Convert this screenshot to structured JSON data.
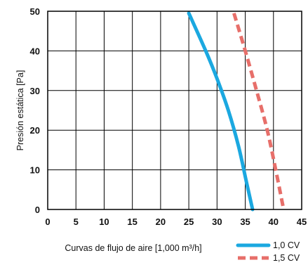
{
  "chart_data": {
    "type": "line",
    "xlabel": "Curvas de flujo de aire [1,000 m³/h]",
    "ylabel": "Presión estática  [Pa]",
    "xlim": [
      0,
      45
    ],
    "ylim": [
      0,
      50
    ],
    "x_ticks": [
      "0",
      "5",
      "10",
      "15",
      "20",
      "25",
      "30",
      "35",
      "40",
      "45"
    ],
    "y_ticks": [
      "0",
      "10",
      "20",
      "30",
      "40",
      "50"
    ],
    "grid": true,
    "legend_position": "bottom-right",
    "series": [
      {
        "name": "1,0 CV",
        "color": "#1ba8e0",
        "line_style": "solid",
        "points": [
          {
            "x": 25.0,
            "y": 49.5
          },
          {
            "x": 28.0,
            "y": 40.0
          },
          {
            "x": 30.0,
            "y": 33.0
          },
          {
            "x": 32.0,
            "y": 25.0
          },
          {
            "x": 33.8,
            "y": 16.0
          },
          {
            "x": 35.2,
            "y": 7.0
          },
          {
            "x": 36.3,
            "y": 0.0
          }
        ]
      },
      {
        "name": "1,5 CV",
        "color": "#e76f6a",
        "line_style": "dashed",
        "points": [
          {
            "x": 33.0,
            "y": 49.5
          },
          {
            "x": 35.0,
            "y": 40.0
          },
          {
            "x": 37.0,
            "y": 30.0
          },
          {
            "x": 38.9,
            "y": 20.0
          },
          {
            "x": 40.4,
            "y": 10.0
          },
          {
            "x": 41.8,
            "y": 0.0
          }
        ]
      }
    ]
  }
}
